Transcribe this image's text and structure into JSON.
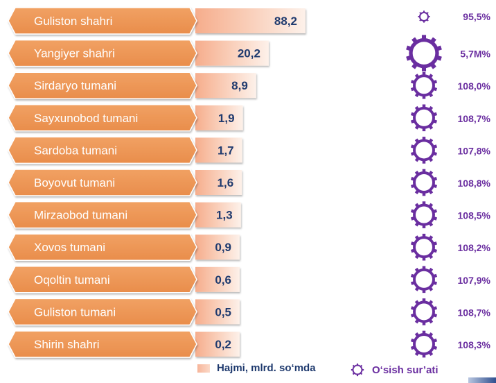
{
  "chart_data": {
    "type": "bar",
    "categories": [
      "Guliston shahri",
      "Yangiyer shahri",
      "Sirdaryo tumani",
      "Sayxunobod tumani",
      "Sardoba tumani",
      "Boyovut tumani",
      "Mirzaobod tumani",
      "Xovos tumani",
      "Oqoltin tumani",
      "Guliston tumani",
      "Shirin shahri"
    ],
    "series": [
      {
        "name": "Hajmi, mlrd. so‘mda",
        "values": [
          88.2,
          20.2,
          8.9,
          1.9,
          1.7,
          1.6,
          1.3,
          0.9,
          0.6,
          0.5,
          0.2
        ],
        "labels": [
          "88,2",
          "20,2",
          "8,9",
          "1,9",
          "1,7",
          "1,6",
          "1,3",
          "0,9",
          "0,6",
          "0,5",
          "0,2"
        ]
      },
      {
        "name": "O‘sish sur’ati",
        "labels": [
          "95,5%",
          "5,7M%",
          "108,0%",
          "108,7%",
          "107,8%",
          "108,8%",
          "108,5%",
          "108,2%",
          "107,9%",
          "108,7%",
          "108,3%"
        ]
      }
    ],
    "legend": "bottom",
    "colors": {
      "category_box": "#ef9a5a",
      "bar_start": "#f7b59a",
      "bar_end": "#fdf0ea",
      "value_text": "#1f3a6e",
      "gear": "#6a2ea0"
    }
  }
}
